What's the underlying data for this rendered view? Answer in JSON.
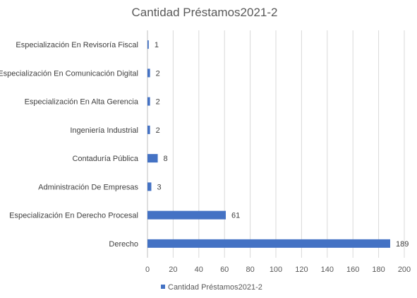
{
  "chart_data": {
    "type": "bar",
    "orientation": "horizontal",
    "title": "Cantidad Préstamos2021-2",
    "categories": [
      "Especialización En Revisoría Fiscal",
      "Especialización En Comunicación Digital",
      "Especialización En Alta Gerencia",
      "Ingeniería Industrial",
      "Contaduría Pública",
      "Administración De Empresas",
      "Especialización En Derecho Procesal",
      "Derecho"
    ],
    "series": [
      {
        "name": "Cantidad Préstamos2021-2",
        "values": [
          1,
          2,
          2,
          2,
          8,
          3,
          61,
          189
        ],
        "color": "#4472c4"
      }
    ],
    "xlim": [
      0,
      200
    ],
    "x_ticks": [
      0,
      20,
      40,
      60,
      80,
      100,
      120,
      140,
      160,
      180,
      200
    ],
    "grid": true,
    "legend_position": "bottom-left"
  }
}
